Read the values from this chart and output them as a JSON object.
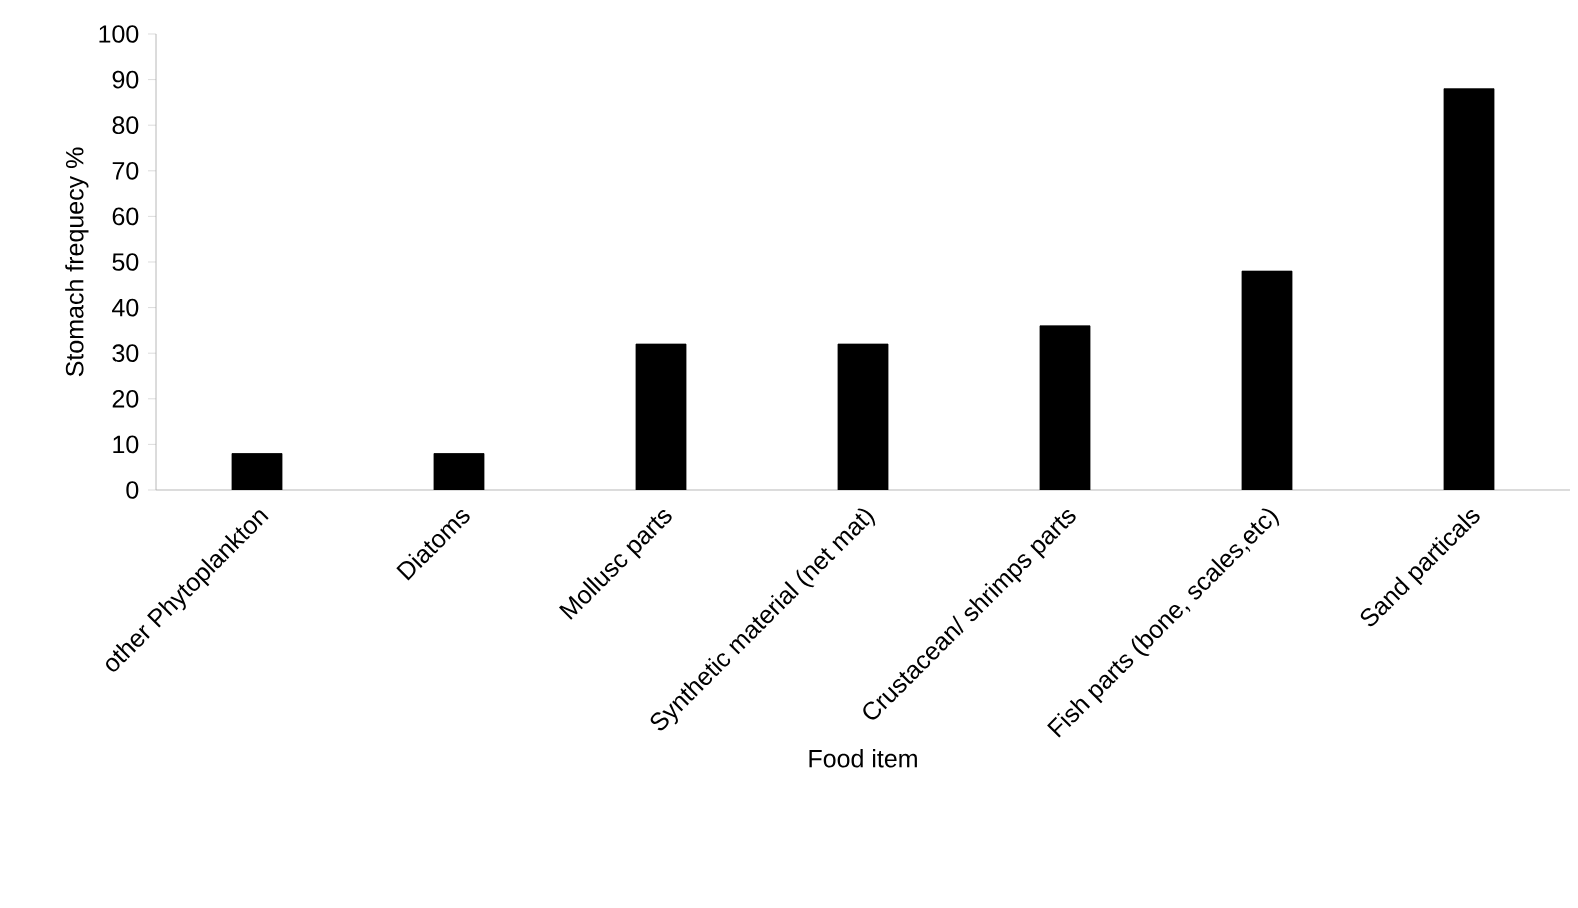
{
  "chart_data": {
    "type": "bar",
    "xlabel": "Food item",
    "ylabel": "Stomach frequecy %",
    "categories": [
      "other Phytoplankton",
      "Diatoms",
      "Mollusc parts",
      "Synthetic material (net mat)",
      "Crustacean/ shrimps parts",
      "Fish parts (bone, scales,etc)",
      "Sand particals"
    ],
    "values": [
      8,
      8,
      32,
      32,
      36,
      48,
      88
    ],
    "color": "#000000",
    "ylim": [
      0,
      100
    ],
    "yticks": [
      0,
      10,
      20,
      30,
      40,
      50,
      60,
      70,
      80,
      90,
      100
    ]
  }
}
